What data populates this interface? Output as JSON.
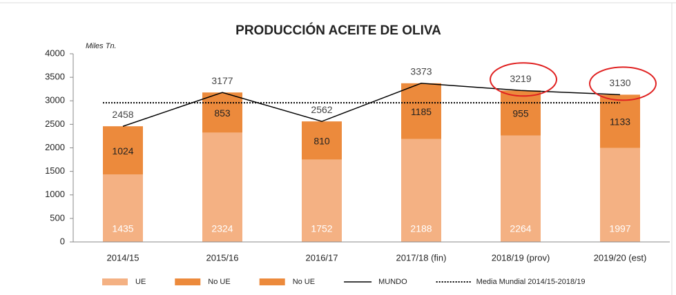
{
  "chart_data": {
    "type": "bar",
    "title": "PRODUCCIÓN ACEITE DE OLIVA",
    "y_label": "Miles Tn.",
    "categories": [
      "2014/15",
      "2015/16",
      "2016/17",
      "2017/18 (fin)",
      "2018/19 (prov)",
      "2019/20 (est)"
    ],
    "ylim": [
      0,
      4000
    ],
    "yticks": [
      0,
      500,
      1000,
      1500,
      2000,
      2500,
      3000,
      3500,
      4000
    ],
    "stacked": true,
    "series": [
      {
        "name": "UE",
        "color": "#f4b183",
        "values": [
          1435,
          2324,
          1752,
          2188,
          2264,
          1997
        ]
      },
      {
        "name": "No UE",
        "color": "#ec8a3c",
        "values": [
          1024,
          853,
          810,
          1185,
          955,
          1133
        ]
      },
      {
        "name": "MUNDO",
        "type": "line",
        "color": "#000000",
        "values": [
          2458,
          3177,
          2562,
          3373,
          3219,
          3130
        ]
      },
      {
        "name": "Media Mundial 2014/15-2018/19",
        "type": "dotted-line",
        "color": "#000000",
        "value": 2958
      }
    ],
    "extra_legend_entries": [
      {
        "name": "No UE",
        "color": "#ec8a3c"
      }
    ],
    "highlighted_categories": [
      4,
      5
    ],
    "highlight_color": "#e02020"
  }
}
